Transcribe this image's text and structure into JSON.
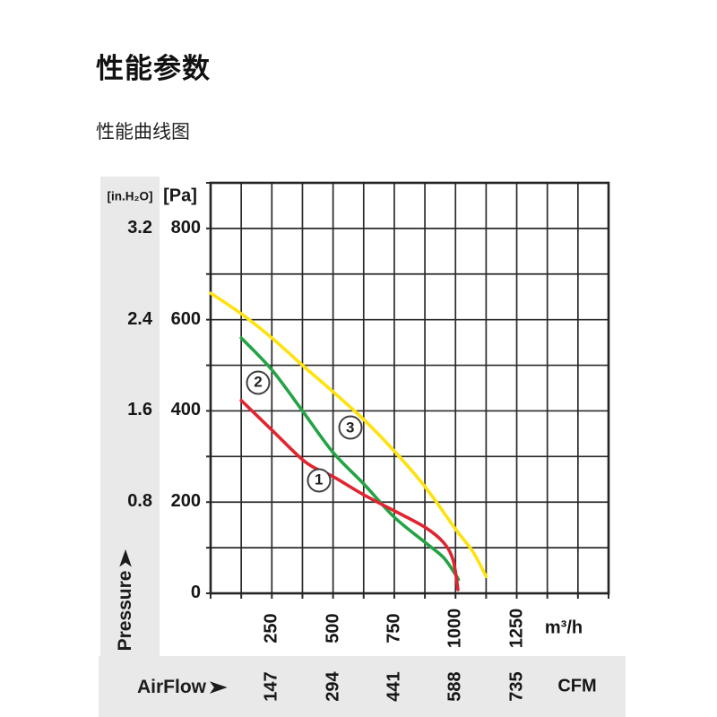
{
  "page": {
    "title": "性能参数",
    "subtitle": "性能曲线图"
  },
  "icons": {
    "right_arrow": "➤"
  },
  "chart_data": {
    "type": "line",
    "title": "性能曲线图",
    "grid": true,
    "legend_position": "none",
    "x_axis": {
      "label": "AirFlow",
      "unit_primary": "m³/h",
      "unit_secondary": "CFM",
      "ticks_m3h": [
        "250",
        "500",
        "750",
        "1000",
        "1250"
      ],
      "ticks_m3h_values": [
        250,
        500,
        750,
        1000,
        1250
      ],
      "ticks_cfm": [
        "147",
        "294",
        "441",
        "588",
        "735"
      ],
      "xlim": [
        0,
        1625
      ],
      "grid_step": 125
    },
    "y_axis": {
      "label": "Pressure",
      "unit_primary": "[Pa]",
      "unit_secondary": "[in.H₂O]",
      "ticks_pa": [
        "800",
        "600",
        "400",
        "200",
        "0"
      ],
      "ticks_pa_values": [
        800,
        600,
        400,
        200,
        0
      ],
      "ticks_inh2o": [
        "3.2",
        "2.4",
        "1.6",
        "0.8"
      ],
      "ticks_inh2o_pa_positions": [
        800,
        600,
        400,
        200
      ],
      "ylim": [
        0,
        900
      ],
      "grid_step": 100
    },
    "series": [
      {
        "name": "3",
        "color": "#ffe20d",
        "points": [
          [
            0,
            658
          ],
          [
            125,
            613
          ],
          [
            250,
            560
          ],
          [
            375,
            500
          ],
          [
            500,
            442
          ],
          [
            625,
            381
          ],
          [
            750,
            312
          ],
          [
            875,
            234
          ],
          [
            1000,
            141
          ],
          [
            1070,
            92
          ],
          [
            1125,
            37
          ]
        ]
      },
      {
        "name": "2",
        "color": "#23a345",
        "points": [
          [
            125,
            560
          ],
          [
            250,
            490
          ],
          [
            375,
            400
          ],
          [
            500,
            309
          ],
          [
            625,
            240
          ],
          [
            750,
            167
          ],
          [
            875,
            112
          ],
          [
            950,
            79
          ],
          [
            1000,
            41
          ],
          [
            1012,
            30
          ]
        ]
      },
      {
        "name": "1",
        "color": "#e02531",
        "points": [
          [
            125,
            423
          ],
          [
            250,
            358
          ],
          [
            375,
            293
          ],
          [
            440,
            271
          ],
          [
            500,
            256
          ],
          [
            625,
            216
          ],
          [
            750,
            181
          ],
          [
            875,
            145
          ],
          [
            950,
            112
          ],
          [
            990,
            73
          ],
          [
            1010,
            8
          ]
        ]
      }
    ],
    "annotations": [
      {
        "label": "1",
        "x": 442,
        "pa": 248
      },
      {
        "label": "2",
        "x": 194,
        "pa": 462
      },
      {
        "label": "3",
        "x": 570,
        "pa": 363
      }
    ]
  }
}
